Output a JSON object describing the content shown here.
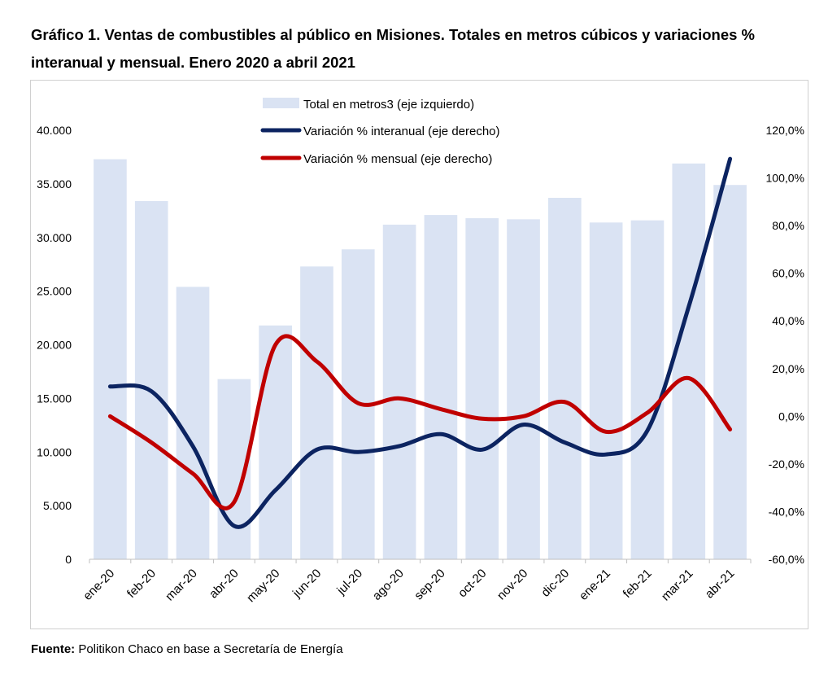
{
  "header": {
    "title": "Gráfico 1. Ventas de combustibles al público en Misiones. Totales en metros cúbicos y variaciones % interanual y mensual. Enero 2020 a abril 2021"
  },
  "footer": {
    "source_label": "Fuente:",
    "source_text": " Politikon Chaco en base a Secretaría de Energía"
  },
  "colors": {
    "bars": "#dae3f3",
    "interanual": "#0c2461",
    "mensual": "#c00000",
    "axis": "#bfbfbf"
  },
  "chart_data": {
    "type": "bar",
    "categories": [
      "ene-20",
      "feb-20",
      "mar-20",
      "abr-20",
      "may-20",
      "jun-20",
      "jul-20",
      "ago-20",
      "sep-20",
      "oct-20",
      "nov-20",
      "dic-20",
      "ene-21",
      "feb-21",
      "mar-21",
      "abr-21"
    ],
    "y_left": {
      "range": [
        0,
        40000
      ],
      "ticks": [
        0,
        5000,
        10000,
        15000,
        20000,
        25000,
        30000,
        35000,
        40000
      ],
      "tick_labels": [
        "0",
        "5.000",
        "10.000",
        "15.000",
        "20.000",
        "25.000",
        "30.000",
        "35.000",
        "40.000"
      ]
    },
    "y_right": {
      "range": [
        -60,
        120
      ],
      "ticks": [
        -60,
        -40,
        -20,
        0,
        20,
        40,
        60,
        80,
        100,
        120
      ],
      "tick_labels": [
        "-60,0%",
        "-40,0%",
        "-20,0%",
        "0,0%",
        "20,0%",
        "40,0%",
        "60,0%",
        "80,0%",
        "100,0%",
        "120,0%"
      ]
    },
    "series": [
      {
        "name": "Total en metros3 (eje izquierdo)",
        "type": "bar",
        "axis": "left",
        "values": [
          37300,
          33400,
          25400,
          16800,
          21800,
          27300,
          28900,
          31200,
          32100,
          31800,
          31700,
          33700,
          31400,
          31600,
          36900,
          34900
        ]
      },
      {
        "name": "Variación % interanual (eje derecho)",
        "type": "line",
        "axis": "right",
        "values": [
          12.5,
          10.5,
          -12.5,
          -46.0,
          -31.0,
          -14.0,
          -15.0,
          -12.5,
          -7.5,
          -14.0,
          -3.5,
          -11.0,
          -16.0,
          -6.0,
          46.0,
          108.0
        ]
      },
      {
        "name": "Variación % mensual (eje derecho)",
        "type": "line",
        "axis": "right",
        "values": [
          0.0,
          -11.0,
          -24.0,
          -36.0,
          30.0,
          23.0,
          5.5,
          7.5,
          3.0,
          -1.0,
          0.0,
          6.0,
          -6.5,
          1.5,
          16.0,
          -5.5
        ]
      }
    ],
    "legend_position": "top-center",
    "grid": false
  }
}
